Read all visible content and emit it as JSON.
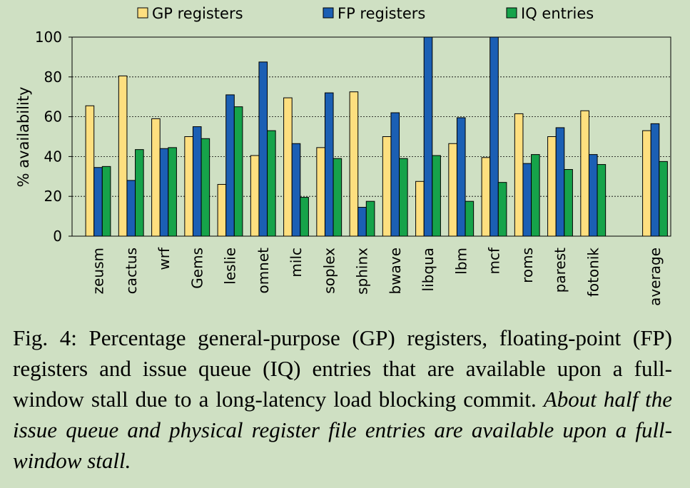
{
  "chart_data": {
    "type": "bar",
    "ylabel": "% availability",
    "ylim": [
      0,
      100
    ],
    "yticks": [
      "0",
      "20",
      "40",
      "60",
      "80",
      "100"
    ],
    "grid": "horizontal-dotted",
    "legend_position": "top",
    "categories": [
      "zeusm",
      "cactus",
      "wrf",
      "Gems",
      "leslie",
      "omnet",
      "milc",
      "soplex",
      "sphinx",
      "bwave",
      "libqua",
      "lbm",
      "mcf",
      "roms",
      "parest",
      "fotonik",
      "average"
    ],
    "series": [
      {
        "name": "GP registers",
        "color": "#fedf7f",
        "values": [
          65.5,
          80.5,
          59,
          50,
          26,
          40.5,
          69.5,
          44.5,
          72.5,
          50,
          27.5,
          46.5,
          39.5,
          61.5,
          50,
          63,
          53
        ]
      },
      {
        "name": "FP registers",
        "color": "#1b5fb4",
        "values": [
          34.5,
          28,
          44,
          55,
          71,
          87.5,
          46.5,
          72,
          14.5,
          62,
          100,
          59.5,
          100,
          36.5,
          54.5,
          41,
          56.5
        ]
      },
      {
        "name": "IQ entries",
        "color": "#16a34a",
        "values": [
          35,
          43.5,
          44.5,
          49,
          65,
          53,
          19.5,
          39,
          17.5,
          39,
          40.5,
          17.5,
          27,
          41,
          33.5,
          36,
          37.5
        ]
      }
    ]
  },
  "caption": {
    "regular": "Fig. 4: Percentage general-purpose (GP) registers, floating-point (FP) registers and issue queue (IQ) entries that are available upon a full-window stall due to a long-latency load blocking commit. ",
    "italic": "About half the issue queue and physical register file entries are available upon a full-window stall."
  }
}
